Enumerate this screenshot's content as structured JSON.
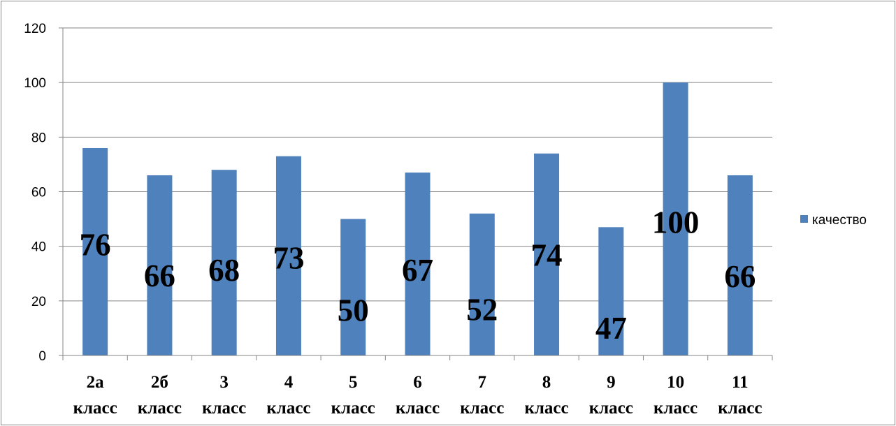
{
  "chart_data": {
    "type": "bar",
    "categories": [
      "2а класс",
      "2б класс",
      "3 класс",
      "4 класс",
      "5 класс",
      "6 класс",
      "7 класс",
      "8 класс",
      "9 класс",
      "10 класс",
      "11 класс"
    ],
    "category_lines": [
      [
        "2а",
        "класс"
      ],
      [
        "2б",
        "класс"
      ],
      [
        "3",
        "класс"
      ],
      [
        "4",
        "класс"
      ],
      [
        "5",
        "класс"
      ],
      [
        "6",
        "класс"
      ],
      [
        "7",
        "класс"
      ],
      [
        "8",
        "класс"
      ],
      [
        "9",
        "класс"
      ],
      [
        "10",
        "класс"
      ],
      [
        "11",
        "класс"
      ]
    ],
    "series": [
      {
        "name": "качество",
        "values": [
          76,
          66,
          68,
          73,
          50,
          67,
          52,
          74,
          47,
          100,
          66
        ]
      }
    ],
    "data_labels": [
      "76",
      "66",
      "68",
      "73",
      "50",
      "67",
      "52",
      "74",
      "47",
      "100",
      "66"
    ],
    "y_ticks": [
      "0",
      "20",
      "40",
      "60",
      "80",
      "100",
      "120"
    ],
    "ylim": [
      0,
      120
    ],
    "title": "",
    "xlabel": "",
    "ylabel": "",
    "grid": true,
    "legend_position": "right",
    "colors": {
      "bar": "#4f81bd",
      "grid": "#868686",
      "axis": "#868686",
      "border": "#868686"
    }
  }
}
